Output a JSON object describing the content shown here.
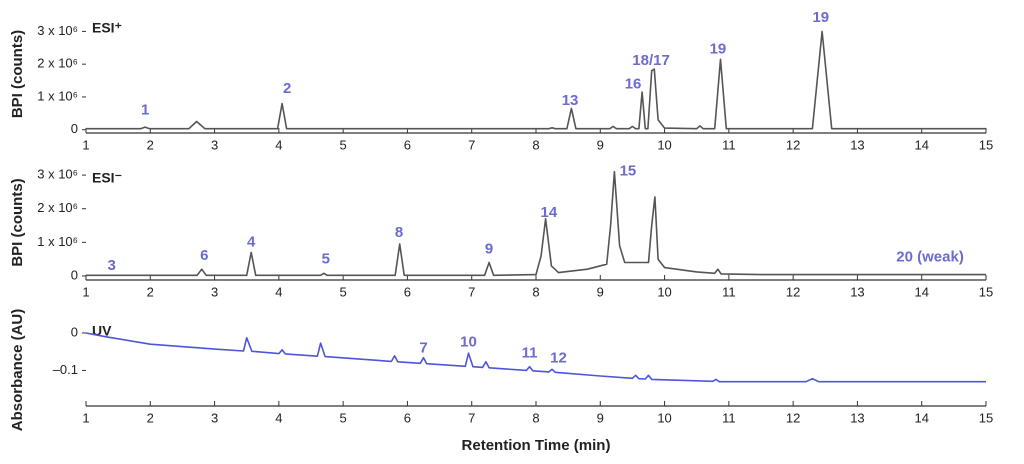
{
  "chart_data": [
    {
      "type": "line",
      "panel_label": "ESI⁺",
      "ylabel": "BPI (counts)",
      "color": "#555555",
      "annotation_color": "#6b6bd0",
      "x": [
        1,
        1.85,
        1.92,
        1.99,
        2.6,
        2.72,
        2.85,
        3.98,
        4.05,
        4.12,
        8.2,
        8.25,
        8.3,
        8.48,
        8.55,
        8.62,
        9.15,
        9.2,
        9.25,
        9.45,
        9.5,
        9.55,
        9.6,
        9.65,
        9.7,
        9.74,
        9.8,
        9.84,
        9.9,
        10.0,
        10.5,
        10.55,
        10.6,
        10.78,
        10.87,
        10.96,
        12.3,
        12.45,
        12.6,
        15
      ],
      "values": [
        30000,
        30000,
        80000,
        30000,
        30000,
        250000,
        30000,
        30000,
        800000,
        30000,
        30000,
        60000,
        30000,
        30000,
        650000,
        30000,
        30000,
        100000,
        30000,
        30000,
        100000,
        30000,
        30000,
        1150000,
        30000,
        30000,
        1800000,
        1850000,
        300000,
        50000,
        30000,
        120000,
        30000,
        30000,
        2150000,
        30000,
        30000,
        3000000,
        30000,
        30000
      ],
      "xlim": [
        1,
        15
      ],
      "xticks": [
        1,
        2,
        3,
        4,
        5,
        6,
        7,
        8,
        9,
        10,
        11,
        12,
        13,
        14,
        15
      ],
      "ylim": [
        -100000,
        3500000
      ],
      "yticks": [
        0,
        {
          "value": 1000000,
          "label": "1 x 10⁶"
        },
        {
          "value": 2000000,
          "label": "2 x 10⁶"
        },
        {
          "value": 3000000,
          "label": "3 x 10⁶"
        }
      ],
      "annotations": [
        {
          "text": "1",
          "x": 1.92,
          "y": 590000
        },
        {
          "text": "2",
          "x": 4.13,
          "y": 1240000
        },
        {
          "text": "13",
          "x": 8.53,
          "y": 880000
        },
        {
          "text": "16",
          "x": 9.51,
          "y": 1380000
        },
        {
          "text": "18/17",
          "x": 9.79,
          "y": 2100000
        },
        {
          "text": "19",
          "x": 10.83,
          "y": 2440000
        },
        {
          "text": "19",
          "x": 12.43,
          "y": 3400000
        }
      ]
    },
    {
      "type": "line",
      "panel_label": "ESI⁻",
      "ylabel": "BPI (counts)",
      "color": "#555555",
      "annotation_color": "#6b6bd0",
      "x": [
        1,
        2.73,
        2.8,
        2.87,
        3.5,
        3.57,
        3.64,
        4.65,
        4.7,
        4.75,
        5.81,
        5.88,
        5.95,
        7.2,
        7.27,
        7.34,
        8.0,
        8.08,
        8.15,
        8.24,
        8.35,
        8.8,
        9.1,
        9.16,
        9.22,
        9.3,
        9.38,
        9.75,
        9.8,
        9.85,
        9.9,
        10.0,
        10.5,
        10.78,
        10.83,
        10.88,
        11.5,
        15
      ],
      "values": [
        20000,
        20000,
        200000,
        20000,
        20000,
        700000,
        20000,
        20000,
        80000,
        20000,
        20000,
        950000,
        20000,
        20000,
        400000,
        20000,
        40000,
        600000,
        1700000,
        300000,
        100000,
        200000,
        350000,
        1500000,
        3100000,
        900000,
        400000,
        400000,
        1500000,
        2350000,
        500000,
        250000,
        120000,
        80000,
        200000,
        60000,
        40000,
        40000
      ],
      "xlim": [
        1,
        15
      ],
      "xticks": [
        1,
        2,
        3,
        4,
        5,
        6,
        7,
        8,
        9,
        10,
        11,
        12,
        13,
        14,
        15
      ],
      "ylim": [
        -120000,
        3300000
      ],
      "yticks": [
        0,
        {
          "value": 1000000,
          "label": "1 x 10⁶"
        },
        {
          "value": 2000000,
          "label": "2 x 10⁶"
        },
        {
          "value": 3000000,
          "label": "3 x 10⁶"
        }
      ],
      "annotations": [
        {
          "text": "3",
          "x": 1.4,
          "y": 290000
        },
        {
          "text": "6",
          "x": 2.84,
          "y": 600000
        },
        {
          "text": "4",
          "x": 3.57,
          "y": 1000000
        },
        {
          "text": "5",
          "x": 4.73,
          "y": 490000
        },
        {
          "text": "8",
          "x": 5.87,
          "y": 1270000
        },
        {
          "text": "9",
          "x": 7.27,
          "y": 780000
        },
        {
          "text": "14",
          "x": 8.2,
          "y": 1870000
        },
        {
          "text": "15",
          "x": 9.43,
          "y": 3100000
        },
        {
          "text": "20 (weak)",
          "x": 14.13,
          "y": 550000
        }
      ]
    },
    {
      "type": "line",
      "panel_label": "UV",
      "ylabel": "Absorbance (AU)",
      "xlabel": "Retention Time (min)",
      "color": "#4f55d9",
      "annotation_color": "#6b6bd0",
      "x": [
        1,
        1.3,
        2,
        3,
        3.45,
        3.5,
        3.58,
        4.0,
        4.05,
        4.1,
        4.6,
        4.65,
        4.72,
        5.75,
        5.8,
        5.85,
        6.2,
        6.25,
        6.3,
        6.9,
        6.95,
        7.02,
        7.17,
        7.22,
        7.27,
        7.85,
        7.9,
        7.95,
        8.2,
        8.25,
        8.3,
        9.0,
        9.5,
        9.55,
        9.6,
        9.7,
        9.75,
        9.8,
        10.75,
        10.8,
        10.85,
        12.2,
        12.3,
        12.4,
        15
      ],
      "values": [
        0,
        -0.01,
        -0.03,
        -0.043,
        -0.048,
        -0.013,
        -0.049,
        -0.055,
        -0.045,
        -0.056,
        -0.062,
        -0.027,
        -0.063,
        -0.076,
        -0.061,
        -0.077,
        -0.081,
        -0.066,
        -0.082,
        -0.089,
        -0.054,
        -0.09,
        -0.092,
        -0.077,
        -0.093,
        -0.1,
        -0.09,
        -0.101,
        -0.104,
        -0.097,
        -0.105,
        -0.115,
        -0.121,
        -0.113,
        -0.122,
        -0.123,
        -0.113,
        -0.124,
        -0.129,
        -0.124,
        -0.13,
        -0.13,
        -0.122,
        -0.13,
        -0.13
      ],
      "xlim": [
        1,
        15
      ],
      "xticks": [
        1,
        2,
        3,
        4,
        5,
        6,
        7,
        8,
        9,
        10,
        11,
        12,
        13,
        14,
        15
      ],
      "ylim": [
        -0.195,
        0.04
      ],
      "yticks": [
        0,
        {
          "value": -0.1,
          "label": "–0.1"
        }
      ],
      "annotations": [
        {
          "text": "7",
          "x": 6.25,
          "y": -0.042
        },
        {
          "text": "10",
          "x": 6.95,
          "y": -0.026
        },
        {
          "text": "11",
          "x": 7.9,
          "y": -0.055
        },
        {
          "text": "12",
          "x": 8.35,
          "y": -0.068
        }
      ]
    }
  ]
}
